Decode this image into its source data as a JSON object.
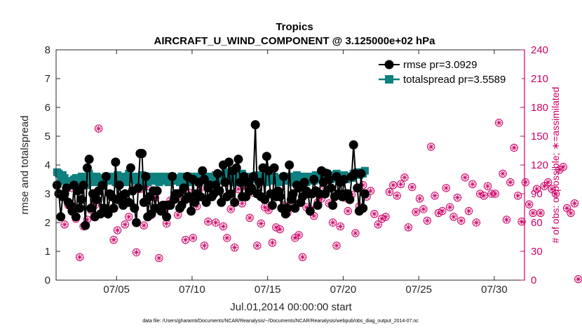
{
  "chart_data": {
    "type": "line",
    "title": "Tropics",
    "subtitle": "AIRCRAFT_U_WIND_COMPONENT @ 3.125000e+02 hPa",
    "xlabel": "Jul.01,2014 00:00:00 start",
    "ylabel": "rmse and totalspread",
    "ylabel_right": "# of obs: o=possible; ∗=assimilated",
    "footer": "data file: /Users/gharamti/Documents/NCAR/Reanalysis/~/Documents/NCAR/Reanalysis/webpub/obs_diag_output_2014-07.nc",
    "xlim": [
      1,
      32
    ],
    "ylim": [
      0,
      8
    ],
    "ylim_right": [
      0,
      240
    ],
    "x_ticks": [
      5,
      10,
      15,
      20,
      25,
      30
    ],
    "x_tick_labels": [
      "07/05",
      "07/10",
      "07/15",
      "07/20",
      "07/25",
      "07/30"
    ],
    "y_ticks": [
      0,
      1,
      2,
      3,
      4,
      5,
      6,
      7,
      8
    ],
    "y_tick_labels": [
      "0",
      "1",
      "2",
      "3",
      "4",
      "5",
      "6",
      "7",
      "8"
    ],
    "y_right_ticks": [
      0,
      30,
      60,
      90,
      120,
      150,
      180,
      210,
      240
    ],
    "y_right_tick_labels": [
      "0",
      "30",
      "60",
      "90",
      "120",
      "150",
      "180",
      "210",
      "240"
    ],
    "legend": [
      "rmse pr=3.0929",
      "totalspread pr=3.5589"
    ],
    "legend_position": "top-right",
    "colors": {
      "rmse": "#000000",
      "spread": "#0f8080",
      "obs": "#cc0066",
      "axis_right": "#cc0066"
    },
    "series": [
      {
        "name": "rmse",
        "step": 0.125,
        "x_start": 1.0625,
        "values": [
          3.3,
          3.0,
          2.2,
          2.9,
          3.0,
          3.2,
          2.7,
          2.6,
          2.4,
          3.3,
          2.2,
          3.1,
          2.5,
          2.8,
          3.3,
          1.9,
          3.9,
          4.2,
          2.5,
          3.0,
          2.2,
          2.8,
          3.1,
          2.3,
          3.3,
          2.5,
          3.6,
          2.3,
          3.0,
          2.9,
          2.5,
          4.1,
          2.8,
          3.3,
          2.9,
          2.6,
          3.0,
          2.7,
          2.7,
          3.9,
          3.1,
          2.5,
          2.0,
          3.2,
          4.4,
          4.4,
          2.7,
          3.6,
          2.2,
          2.9,
          2.3,
          3.1,
          2.5,
          3.1,
          2.5,
          2.4,
          2.6,
          2.6,
          2.2,
          2.6,
          2.6,
          3.6,
          2.8,
          3.0,
          3.0,
          2.5,
          2.6,
          3.2,
          2.8,
          3.6,
          2.9,
          2.4,
          3.5,
          2.7,
          3.0,
          3.4,
          2.9,
          3.8,
          3.5,
          2.7,
          3.2,
          3.3,
          2.9,
          3.0,
          3.3,
          3.7,
          3.1,
          2.7,
          4.0,
          3.4,
          2.9,
          4.1,
          3.0,
          3.8,
          2.7,
          3.9,
          4.2,
          3.4,
          2.9,
          3.6,
          2.9,
          3.4,
          3.1,
          3.2,
          3.6,
          5.4,
          3.0,
          3.4,
          2.9,
          3.9,
          2.8,
          4.3,
          3.8,
          3.0,
          2.6,
          3.9,
          2.9,
          3.1,
          2.9,
          2.5,
          3.6,
          2.3,
          2.5,
          4.0,
          2.8,
          3.0,
          2.5,
          3.3,
          3.2,
          2.7,
          2.9,
          3.4,
          3.1,
          3.0,
          2.4,
          3.0,
          3.5,
          3.1,
          2.6,
          3.0,
          3.8,
          3.4,
          3.0,
          3.7,
          3.5,
          3.2,
          2.6,
          2.9,
          3.6,
          3.0,
          3.4,
          2.9,
          3.5,
          3.0,
          3.0,
          2.8,
          3.6,
          4.7,
          3.7,
          3.2,
          2.4,
          3.7,
          2.5,
          3.0
        ]
      },
      {
        "name": "totalspread",
        "step": 0.125,
        "x_start": 1.0625,
        "values": [
          3.75,
          3.7,
          3.45,
          3.65,
          3.55,
          3.35,
          3.45,
          3.4,
          3.3,
          3.5,
          3.55,
          3.45,
          3.35,
          3.6,
          3.5,
          3.4,
          3.3,
          3.7,
          3.6,
          3.5,
          3.4,
          3.6,
          3.5,
          3.45,
          3.55,
          3.4,
          3.6,
          3.5,
          3.45,
          3.55,
          3.6,
          3.4,
          3.65,
          3.5,
          3.45,
          3.55,
          3.6,
          3.4,
          3.7,
          3.5,
          3.55,
          3.6,
          3.45,
          3.55,
          3.4,
          3.65,
          3.5,
          3.6,
          3.4,
          3.55,
          3.6,
          3.45,
          3.5,
          3.6,
          3.4,
          3.55,
          3.45,
          3.6,
          3.5,
          3.4,
          3.55,
          3.6,
          3.45,
          3.55,
          3.5,
          3.4,
          3.6,
          3.45,
          3.55,
          3.5,
          3.4,
          3.6,
          3.45,
          3.5,
          3.6,
          3.4,
          3.55,
          3.7,
          3.45,
          3.55,
          3.6,
          3.4,
          3.55,
          3.5,
          3.65,
          3.45,
          3.6,
          3.5,
          3.55,
          3.75,
          3.45,
          3.6,
          3.5,
          3.55,
          3.4,
          3.65,
          3.55,
          3.45,
          3.7,
          3.6,
          3.5,
          3.55,
          3.4,
          3.6,
          3.5,
          3.55,
          3.65,
          3.45,
          3.5,
          3.6,
          3.55,
          3.4,
          3.6,
          3.5,
          3.45,
          3.6,
          3.55,
          3.5,
          3.4,
          3.55,
          3.6,
          3.45,
          3.5,
          3.55,
          3.6,
          3.4,
          3.5,
          3.65,
          3.5,
          3.45,
          3.6,
          3.55,
          3.4,
          3.55,
          3.6,
          3.5,
          3.45,
          3.65,
          3.55,
          3.5,
          3.6,
          3.75,
          3.55,
          3.7,
          3.6,
          3.5,
          3.65,
          3.55,
          3.7,
          3.6,
          3.5,
          3.55,
          3.65,
          3.5,
          3.55,
          3.6,
          3.55,
          3.7,
          3.65,
          3.75,
          3.65,
          3.75,
          3.7,
          3.8
        ]
      }
    ],
    "obs_counts": {
      "x_start": 1.0625,
      "step": 0.25,
      "possible": [
        112,
        66,
        58,
        78,
        96,
        64,
        24,
        56,
        63,
        73,
        78,
        158,
        98,
        108,
        73,
        42,
        52,
        81,
        58,
        66,
        95,
        29,
        95,
        57,
        98,
        68,
        86,
        23,
        73,
        59,
        83,
        104,
        68,
        84,
        42,
        91,
        44,
        77,
        96,
        36,
        61,
        100,
        60,
        110,
        56,
        44,
        74,
        34,
        95,
        80,
        98,
        65,
        91,
        36,
        59,
        76,
        73,
        39,
        55,
        53,
        78,
        70,
        82,
        44,
        47,
        24,
        76,
        74,
        67,
        81,
        85,
        98,
        80,
        60,
        36,
        56,
        86,
        72,
        89,
        49,
        77,
        99,
        87,
        93,
        69,
        58,
        64,
        66,
        92,
        99,
        88,
        100,
        107,
        55,
        97,
        71,
        85,
        74,
        62,
        139,
        88,
        70,
        72,
        96,
        76,
        66,
        86,
        62,
        107,
        72,
        100,
        60,
        90,
        88,
        98,
        90,
        90,
        164,
        111,
        63,
        102,
        138,
        88,
        61,
        102,
        79,
        70,
        95,
        70,
        98,
        102,
        95,
        90,
        115,
        118,
        75,
        70,
        80,
        1
      ],
      "assimilated": [
        112,
        66,
        58,
        78,
        96,
        64,
        24,
        56,
        63,
        73,
        78,
        158,
        98,
        108,
        73,
        42,
        52,
        81,
        58,
        66,
        95,
        29,
        95,
        57,
        98,
        68,
        86,
        23,
        73,
        59,
        83,
        104,
        68,
        84,
        42,
        91,
        44,
        77,
        96,
        36,
        61,
        100,
        60,
        110,
        56,
        44,
        74,
        34,
        95,
        80,
        98,
        65,
        91,
        36,
        59,
        76,
        73,
        39,
        55,
        53,
        78,
        70,
        82,
        44,
        47,
        24,
        76,
        74,
        67,
        81,
        85,
        98,
        80,
        60,
        36,
        56,
        86,
        72,
        89,
        49,
        77,
        99,
        87,
        93,
        69,
        58,
        64,
        66,
        92,
        99,
        88,
        100,
        107,
        55,
        97,
        71,
        85,
        74,
        62,
        139,
        88,
        70,
        72,
        96,
        76,
        66,
        86,
        62,
        107,
        72,
        100,
        60,
        90,
        88,
        98,
        90,
        90,
        164,
        111,
        63,
        102,
        138,
        88,
        61,
        102,
        79,
        70,
        95,
        70,
        98,
        102,
        95,
        90,
        115,
        118,
        75,
        70,
        80,
        1
      ]
    }
  }
}
